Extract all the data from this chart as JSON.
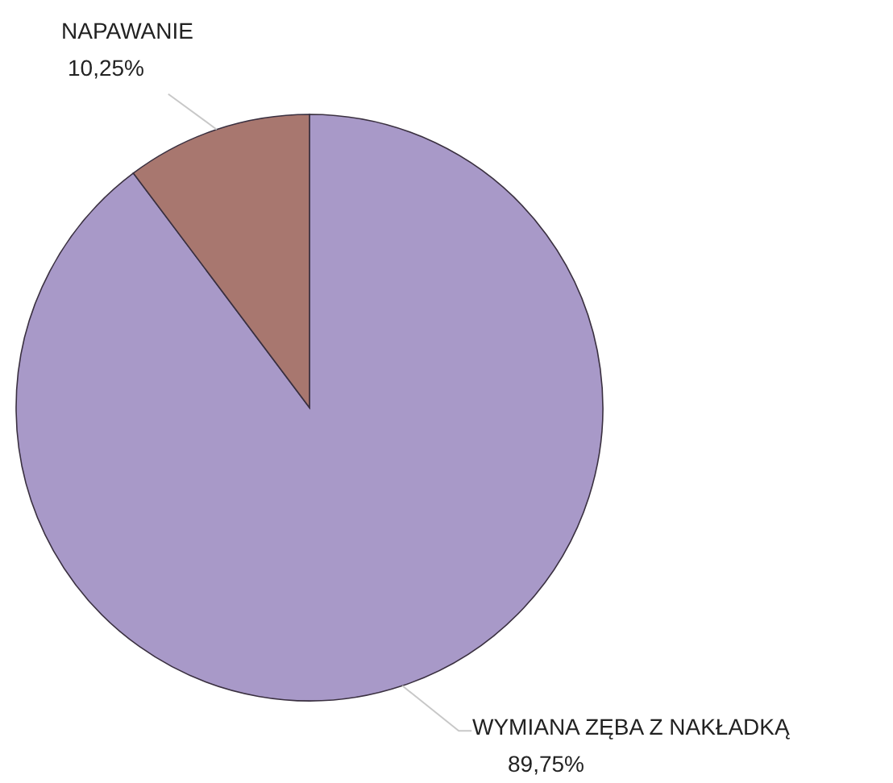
{
  "chart_data": {
    "type": "pie",
    "categories": [
      "WYMIANA ZĘBA Z NAKŁADKĄ",
      "NAPAWANIE"
    ],
    "values": [
      89.75,
      10.25
    ],
    "colors": [
      "#a899c8",
      "#a8776f"
    ],
    "value_labels": [
      "89,75%",
      "10,25%"
    ]
  }
}
